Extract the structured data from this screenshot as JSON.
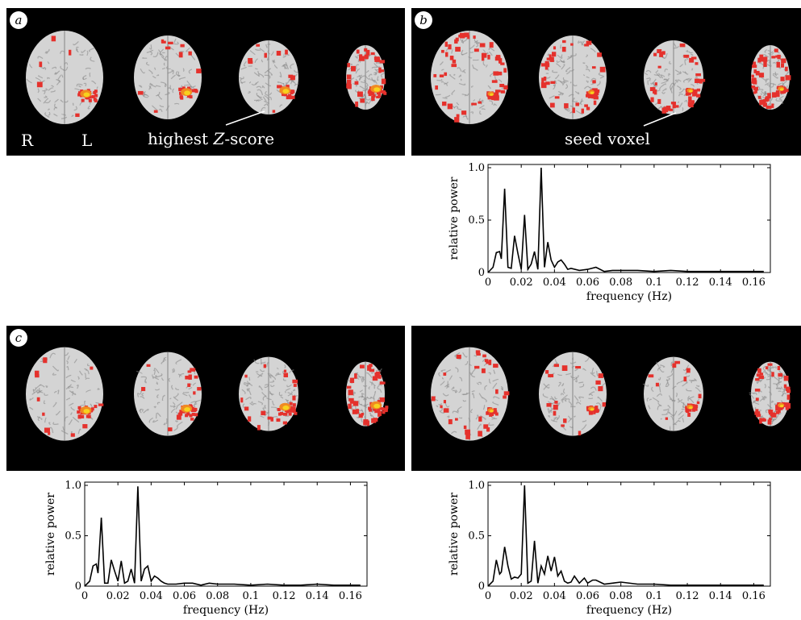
{
  "colors": {
    "background": "#000000",
    "brain_light": "#d4d4d4",
    "brain_dark": "#8a8a8a",
    "activation_red": "#e5312c",
    "activation_orange": "#f08a22",
    "activation_yellow": "#f7d21e"
  },
  "panels": {
    "a": {
      "label": "a",
      "annotation": "highest Z-score",
      "left_label": "R",
      "right_label": "L"
    },
    "b": {
      "label": "b",
      "annotation": "seed voxel"
    },
    "c": {
      "label": "c"
    },
    "d": {
      "label": ""
    }
  },
  "chart_data": [
    {
      "type": "line",
      "panel": "b",
      "title": "",
      "xlabel": "frequency (Hz)",
      "ylabel": "relative power",
      "xlim": [
        0,
        0.17
      ],
      "ylim": [
        0,
        1.0
      ],
      "xticks": [
        "0",
        "0.02",
        "0.04",
        "0.06",
        "0.08",
        "0.1",
        "0.12",
        "0.14",
        "0.16"
      ],
      "yticks": [
        "0",
        "0.5",
        "1.0"
      ],
      "x": [
        0,
        0.003,
        0.005,
        0.007,
        0.008,
        0.01,
        0.012,
        0.014,
        0.016,
        0.018,
        0.02,
        0.022,
        0.024,
        0.026,
        0.028,
        0.03,
        0.032,
        0.034,
        0.036,
        0.038,
        0.04,
        0.042,
        0.044,
        0.046,
        0.048,
        0.05,
        0.055,
        0.06,
        0.065,
        0.07,
        0.075,
        0.08,
        0.09,
        0.1,
        0.11,
        0.12,
        0.13,
        0.14,
        0.15,
        0.16,
        0.166
      ],
      "y": [
        0.0,
        0.05,
        0.19,
        0.2,
        0.13,
        0.8,
        0.05,
        0.04,
        0.35,
        0.18,
        0.03,
        0.55,
        0.03,
        0.08,
        0.2,
        0.03,
        1.0,
        0.05,
        0.29,
        0.12,
        0.05,
        0.1,
        0.12,
        0.08,
        0.03,
        0.04,
        0.02,
        0.03,
        0.05,
        0.01,
        0.02,
        0.02,
        0.02,
        0.01,
        0.02,
        0.01,
        0.01,
        0.01,
        0.01,
        0.01,
        0.01
      ]
    },
    {
      "type": "line",
      "panel": "c",
      "title": "",
      "xlabel": "frequency (Hz)",
      "ylabel": "relative power",
      "xlim": [
        0,
        0.17
      ],
      "ylim": [
        0,
        1.0
      ],
      "xticks": [
        "0",
        "0.02",
        "0.04",
        "0.06",
        "0.08",
        "0.1",
        "0.12",
        "0.14",
        "0.16"
      ],
      "yticks": [
        "0",
        "0.5",
        "1.0"
      ],
      "x": [
        0,
        0.003,
        0.005,
        0.007,
        0.008,
        0.01,
        0.012,
        0.014,
        0.016,
        0.018,
        0.02,
        0.022,
        0.024,
        0.026,
        0.028,
        0.03,
        0.032,
        0.034,
        0.036,
        0.038,
        0.04,
        0.042,
        0.044,
        0.046,
        0.048,
        0.05,
        0.055,
        0.06,
        0.065,
        0.07,
        0.075,
        0.08,
        0.09,
        0.1,
        0.11,
        0.12,
        0.13,
        0.14,
        0.15,
        0.16,
        0.166
      ],
      "y": [
        0.0,
        0.05,
        0.2,
        0.22,
        0.13,
        0.68,
        0.03,
        0.03,
        0.26,
        0.15,
        0.05,
        0.25,
        0.03,
        0.05,
        0.17,
        0.03,
        0.99,
        0.05,
        0.17,
        0.2,
        0.05,
        0.1,
        0.08,
        0.05,
        0.03,
        0.02,
        0.02,
        0.03,
        0.03,
        0.01,
        0.03,
        0.02,
        0.02,
        0.01,
        0.02,
        0.01,
        0.01,
        0.02,
        0.01,
        0.01,
        0.01
      ]
    },
    {
      "type": "line",
      "panel": "d",
      "title": "",
      "xlabel": "frequency (Hz)",
      "ylabel": "relative power",
      "xlim": [
        0,
        0.17
      ],
      "ylim": [
        0,
        1.0
      ],
      "xticks": [
        "0",
        "0.02",
        "0.04",
        "0.06",
        "0.08",
        "0.1",
        "0.12",
        "0.14",
        "0.16"
      ],
      "yticks": [
        "0",
        "0.5",
        "1.0"
      ],
      "x": [
        0,
        0.003,
        0.005,
        0.007,
        0.008,
        0.01,
        0.012,
        0.014,
        0.016,
        0.018,
        0.02,
        0.022,
        0.024,
        0.026,
        0.028,
        0.03,
        0.032,
        0.034,
        0.036,
        0.038,
        0.04,
        0.042,
        0.044,
        0.046,
        0.048,
        0.05,
        0.052,
        0.055,
        0.058,
        0.06,
        0.063,
        0.065,
        0.07,
        0.075,
        0.08,
        0.09,
        0.1,
        0.11,
        0.12,
        0.13,
        0.14,
        0.15,
        0.16,
        0.166
      ],
      "y": [
        0.0,
        0.05,
        0.26,
        0.12,
        0.14,
        0.39,
        0.2,
        0.07,
        0.09,
        0.08,
        0.12,
        1.0,
        0.03,
        0.05,
        0.45,
        0.03,
        0.2,
        0.12,
        0.3,
        0.15,
        0.29,
        0.1,
        0.15,
        0.05,
        0.03,
        0.04,
        0.1,
        0.03,
        0.08,
        0.03,
        0.06,
        0.06,
        0.02,
        0.03,
        0.04,
        0.02,
        0.02,
        0.01,
        0.01,
        0.01,
        0.01,
        0.01,
        0.01,
        0.01
      ]
    }
  ]
}
